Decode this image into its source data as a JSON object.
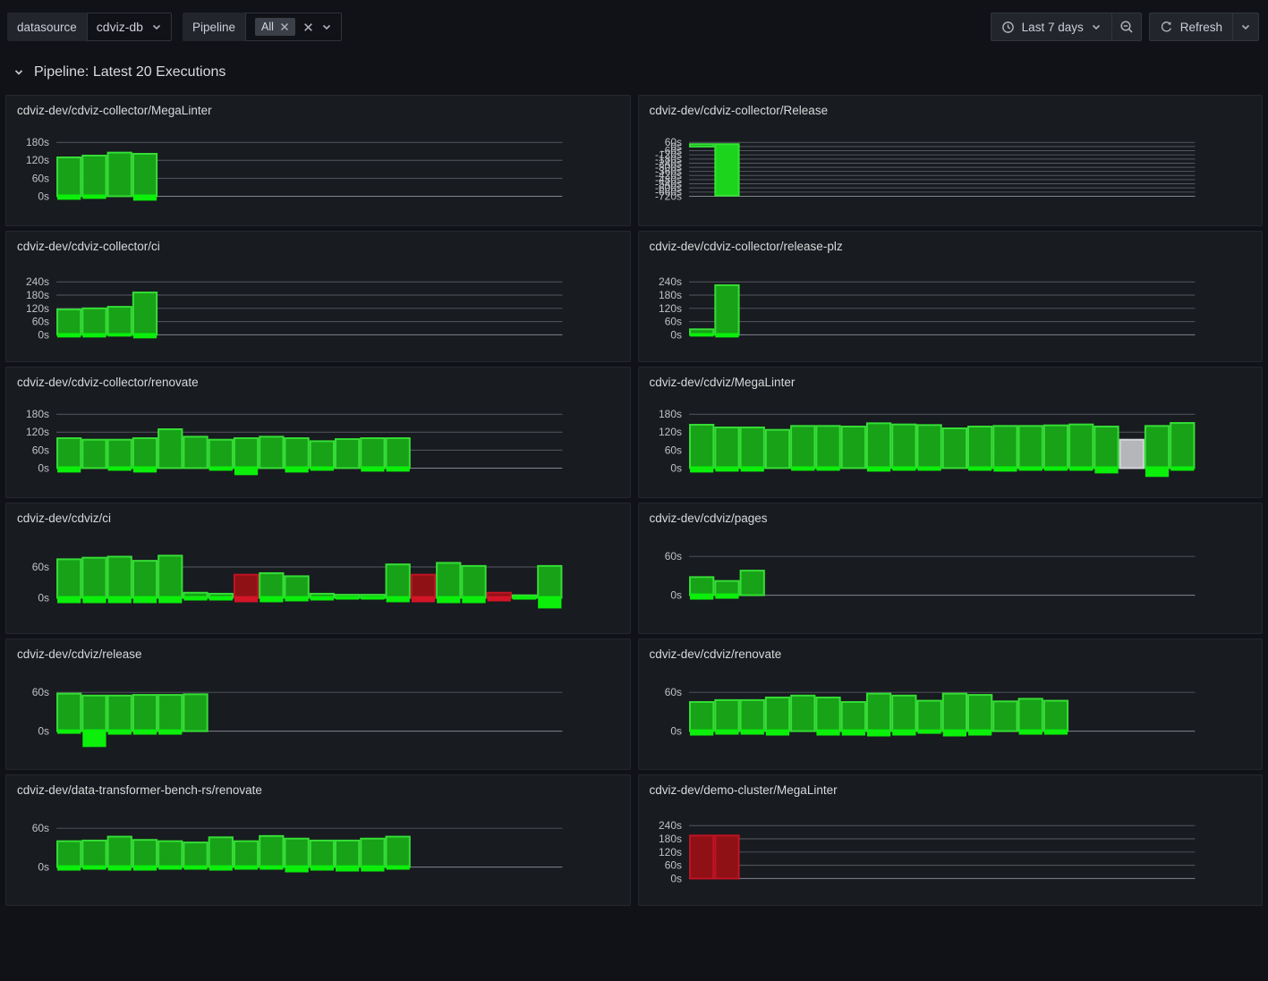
{
  "toolbar": {
    "datasource_label": "datasource",
    "datasource_value": "cdviz-db",
    "pipeline_label": "Pipeline",
    "pipeline_chip": "All",
    "time_range": "Last 7 days",
    "refresh_label": "Refresh"
  },
  "section": {
    "title": "Pipeline: Latest 20 Executions"
  },
  "colors": {
    "page_bg": "#111217",
    "panel_bg": "#181b1f",
    "green_fill": "#17a217",
    "green_stroke": "#36dd36",
    "green_bright": "#0bef0b",
    "lime_fill": "#1bd41b",
    "lime_stroke": "#33e533",
    "red_fill": "#8f1115",
    "red_stroke": "#c21225",
    "red_bright": "#d41528",
    "gray_fill": "#b4b6ba",
    "gray_stroke": "#d4d6da",
    "grid": "rgba(204,204,220,0.35)",
    "baseline": "rgba(204,204,220,0.6)",
    "axis_text": "#c0c2c8"
  },
  "panels": [
    {
      "title": "cdviz-dev/cdviz-collector/MegaLinter",
      "ticks": [
        "180s",
        "120s",
        "60s",
        "0s"
      ],
      "unit": "s",
      "bars": [
        {
          "v": 130,
          "u": 4
        },
        {
          "v": 136,
          "u": 3
        },
        {
          "v": 146
        },
        {
          "v": 142,
          "u": 5
        }
      ]
    },
    {
      "title": "cdviz-dev/cdviz-collector/Release",
      "ticks": [
        "60s",
        "0s",
        "-60s",
        "-120s",
        "-180s",
        "-240s",
        "-300s",
        "-360s",
        "-420s",
        "-480s",
        "-540s",
        "-600s",
        "-660s",
        "-720s"
      ],
      "unit": "s",
      "bars": [
        {
          "v": 35
        },
        {
          "v": 35,
          "b": -710,
          "c": "bright"
        }
      ]
    },
    {
      "title": "cdviz-dev/cdviz-collector/ci",
      "ticks": [
        "240s",
        "180s",
        "120s",
        "60s",
        "0s"
      ],
      "unit": "s",
      "bars": [
        {
          "v": 115,
          "u": 3
        },
        {
          "v": 120,
          "u": 3
        },
        {
          "v": 127,
          "u": 2
        },
        {
          "v": 192,
          "u": 4
        }
      ]
    },
    {
      "title": "cdviz-dev/cdviz-collector/release-plz",
      "ticks": [
        "240s",
        "180s",
        "120s",
        "60s",
        "0s"
      ],
      "unit": "s",
      "bars": [
        {
          "v": 25,
          "u": 2
        },
        {
          "v": 225,
          "u": 3
        }
      ]
    },
    {
      "title": "cdviz-dev/cdviz-collector/renovate",
      "ticks": [
        "180s",
        "120s",
        "60s",
        "0s"
      ],
      "unit": "s",
      "bars": [
        {
          "v": 100,
          "u": 5
        },
        {
          "v": 95
        },
        {
          "v": 95,
          "u": 3
        },
        {
          "v": 100,
          "u": 5
        },
        {
          "v": 130
        },
        {
          "v": 105
        },
        {
          "v": 95,
          "u": 3
        },
        {
          "v": 100,
          "u": 8
        },
        {
          "v": 105
        },
        {
          "v": 100,
          "u": 5
        },
        {
          "v": 90,
          "u": 3
        },
        {
          "v": 97
        },
        {
          "v": 100,
          "u": 4
        },
        {
          "v": 100,
          "u": 4
        }
      ]
    },
    {
      "title": "cdviz-dev/cdviz/MegaLinter",
      "ticks": [
        "180s",
        "120s",
        "60s",
        "0s"
      ],
      "unit": "s",
      "bars": [
        {
          "v": 145,
          "u": 5
        },
        {
          "v": 136,
          "u": 4
        },
        {
          "v": 136,
          "u": 4
        },
        {
          "v": 128
        },
        {
          "v": 141,
          "u": 3
        },
        {
          "v": 141,
          "u": 3
        },
        {
          "v": 139
        },
        {
          "v": 150,
          "u": 4
        },
        {
          "v": 146,
          "u": 3
        },
        {
          "v": 144,
          "u": 3
        },
        {
          "v": 133
        },
        {
          "v": 139,
          "u": 3
        },
        {
          "v": 141,
          "u": 4
        },
        {
          "v": 141,
          "u": 3
        },
        {
          "v": 143,
          "u": 3
        },
        {
          "v": 146,
          "u": 3
        },
        {
          "v": 139,
          "u": 6
        },
        {
          "v": 95,
          "c": "gray"
        },
        {
          "v": 141,
          "u": 10
        },
        {
          "v": 151,
          "u": 3
        }
      ]
    },
    {
      "title": "cdviz-dev/cdviz/ci",
      "ticks": [
        "60s",
        "0s"
      ],
      "unit": "s",
      "bars": [
        {
          "v": 75,
          "u": 6
        },
        {
          "v": 78,
          "u": 6
        },
        {
          "v": 80,
          "u": 6
        },
        {
          "v": 72,
          "u": 6
        },
        {
          "v": 82,
          "u": 6
        },
        {
          "v": 10,
          "u": 3
        },
        {
          "v": 8,
          "u": 3
        },
        {
          "v": 45,
          "c": "red",
          "u": 5
        },
        {
          "v": 48,
          "u": 5
        },
        {
          "v": 42,
          "u": 4
        },
        {
          "v": 8,
          "u": 3
        },
        {
          "v": 6,
          "u": 2
        },
        {
          "v": 6,
          "u": 2
        },
        {
          "v": 65,
          "u": 5
        },
        {
          "v": 45,
          "c": "red",
          "u": 5
        },
        {
          "v": 68,
          "u": 6
        },
        {
          "v": 62,
          "u": 6
        },
        {
          "v": 10,
          "c": "red",
          "u": 4
        },
        {
          "v": 5,
          "u": 2
        },
        {
          "v": 62,
          "u": 12
        }
      ]
    },
    {
      "title": "cdviz-dev/cdviz/pages",
      "ticks": [
        "60s",
        "0s"
      ],
      "unit": "s",
      "bars": [
        {
          "v": 28,
          "u": 5
        },
        {
          "v": 22,
          "u": 4
        },
        {
          "v": 38
        }
      ]
    },
    {
      "title": "cdviz-dev/cdviz/release",
      "ticks": [
        "60s",
        "0s"
      ],
      "unit": "s",
      "bars": [
        {
          "v": 58,
          "u": 3
        },
        {
          "v": 55,
          "u": 18
        },
        {
          "v": 55,
          "u": 4
        },
        {
          "v": 56,
          "u": 4
        },
        {
          "v": 56,
          "u": 4
        },
        {
          "v": 57
        }
      ]
    },
    {
      "title": "cdviz-dev/cdviz/renovate",
      "ticks": [
        "60s",
        "0s"
      ],
      "unit": "s",
      "bars": [
        {
          "v": 45,
          "u": 5
        },
        {
          "v": 48,
          "u": 4
        },
        {
          "v": 48,
          "u": 4
        },
        {
          "v": 52,
          "u": 5
        },
        {
          "v": 55
        },
        {
          "v": 52,
          "u": 5
        },
        {
          "v": 45,
          "u": 5
        },
        {
          "v": 58,
          "u": 6
        },
        {
          "v": 55,
          "u": 5
        },
        {
          "v": 47,
          "u": 3
        },
        {
          "v": 58,
          "u": 6
        },
        {
          "v": 56,
          "u": 5
        },
        {
          "v": 46
        },
        {
          "v": 50,
          "u": 4
        },
        {
          "v": 47,
          "u": 4
        }
      ]
    },
    {
      "title": "cdviz-dev/data-transformer-bench-rs/renovate",
      "ticks": [
        "60s",
        "0s"
      ],
      "unit": "s",
      "bars": [
        {
          "v": 40,
          "u": 4
        },
        {
          "v": 41,
          "u": 3
        },
        {
          "v": 47,
          "u": 4
        },
        {
          "v": 42,
          "u": 4
        },
        {
          "v": 40,
          "u": 3
        },
        {
          "v": 38,
          "u": 3
        },
        {
          "v": 46,
          "u": 4
        },
        {
          "v": 40,
          "u": 3
        },
        {
          "v": 48,
          "u": 3
        },
        {
          "v": 44,
          "u": 6
        },
        {
          "v": 41,
          "u": 4
        },
        {
          "v": 41,
          "u": 5
        },
        {
          "v": 44,
          "u": 5
        },
        {
          "v": 47,
          "u": 3
        }
      ]
    },
    {
      "title": "cdviz-dev/demo-cluster/MegaLinter",
      "ticks": [
        "240s",
        "180s",
        "120s",
        "60s",
        "0s"
      ],
      "unit": "s",
      "bars": [
        {
          "v": 195,
          "c": "red"
        },
        {
          "v": 195,
          "c": "red"
        }
      ]
    }
  ]
}
